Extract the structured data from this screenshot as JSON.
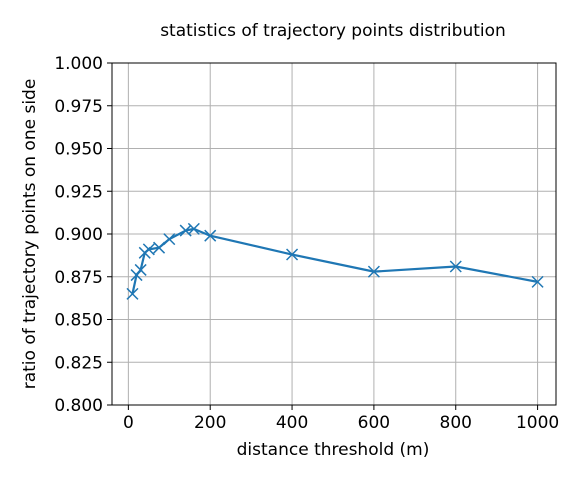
{
  "chart_data": {
    "type": "line",
    "title": "statistics of trajectory points distribution",
    "xlabel": "distance threshold (m)",
    "ylabel": "ratio of trajectory points on one side",
    "xlim": [
      -40,
      1045
    ],
    "ylim": [
      0.8,
      1.0
    ],
    "xticks": [
      0,
      200,
      400,
      600,
      800,
      1000
    ],
    "xtick_labels": [
      "0",
      "200",
      "400",
      "600",
      "800",
      "1000"
    ],
    "yticks": [
      0.8,
      0.825,
      0.85,
      0.875,
      0.9,
      0.925,
      0.95,
      0.975,
      1.0
    ],
    "ytick_labels": [
      "0.800",
      "0.825",
      "0.850",
      "0.875",
      "0.900",
      "0.925",
      "0.950",
      "0.975",
      "1.000"
    ],
    "grid": true,
    "series": [
      {
        "marker": "x",
        "color": "#1f77b4",
        "x": [
          10,
          20,
          30,
          40,
          50,
          75,
          100,
          140,
          160,
          200,
          400,
          600,
          800,
          1000
        ],
        "y": [
          0.865,
          0.876,
          0.879,
          0.889,
          0.891,
          0.892,
          0.897,
          0.902,
          0.903,
          0.899,
          0.888,
          0.878,
          0.881,
          0.872
        ]
      }
    ]
  }
}
